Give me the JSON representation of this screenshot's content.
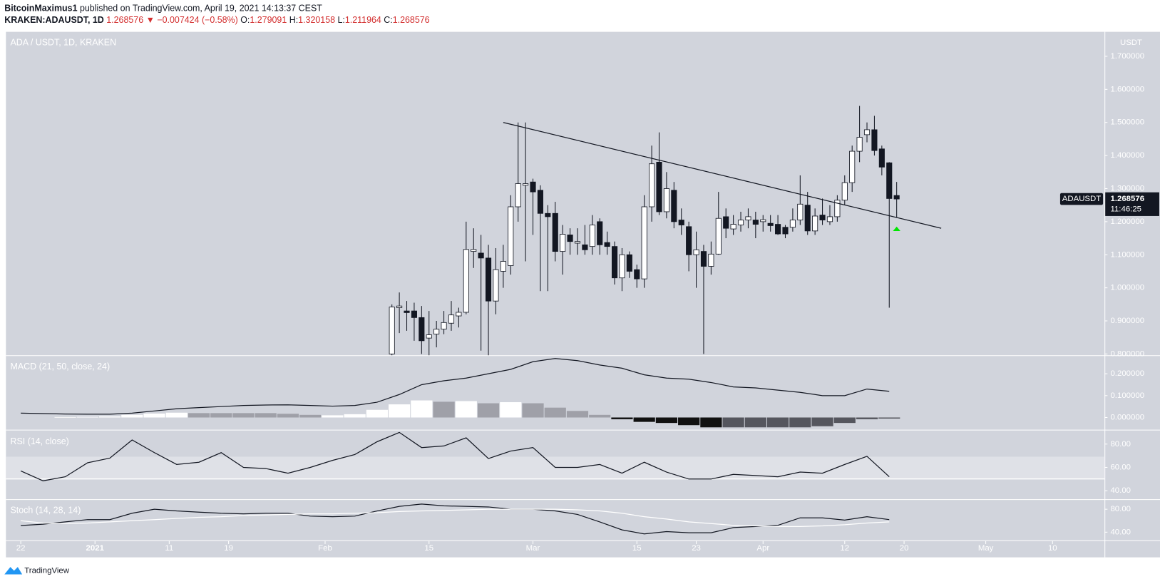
{
  "header": {
    "publisher": "BitcoinMaximus1",
    "published": "published on TradingView.com, April 19, 2021 14:13:37 CEST",
    "symbol": "KRAKEN:ADAUSDT, 1D",
    "price": "1.268576",
    "change": "▼ −0.007424 (−0.58%)",
    "ohlc": [
      {
        "label": "O:",
        "value": "1.279091"
      },
      {
        "label": "H:",
        "value": "1.320158"
      },
      {
        "label": "L:",
        "value": "1.211964"
      },
      {
        "label": "C:",
        "value": "1.268576"
      }
    ],
    "footer": "TradingView"
  },
  "chart_data": [
    {
      "type": "candlestick",
      "title": "ADA / USDT, 1D, KRAKEN",
      "axis_title": "USDT",
      "up_color": "#ffffff",
      "down_color": "#131722",
      "xlim": [
        "2020-12-20",
        "2021-05-17"
      ],
      "ylim": [
        0.796,
        1.774
      ],
      "yticks": [
        {
          "value": 0.8,
          "label": "0.800000"
        },
        {
          "value": 0.9,
          "label": "0.900000"
        },
        {
          "value": 1.0,
          "label": "1.000000"
        },
        {
          "value": 1.1,
          "label": "1.100000"
        },
        {
          "value": 1.2,
          "label": "1.200000"
        },
        {
          "value": 1.3,
          "label": "1.300000"
        },
        {
          "value": 1.4,
          "label": "1.400000"
        },
        {
          "value": 1.5,
          "label": "1.500000"
        },
        {
          "value": 1.6,
          "label": "1.600000"
        },
        {
          "value": 1.7,
          "label": "1.700000"
        }
      ],
      "x": [
        "2021-02-10",
        "2021-02-11",
        "2021-02-12",
        "2021-02-13",
        "2021-02-14",
        "2021-02-15",
        "2021-02-16",
        "2021-02-17",
        "2021-02-18",
        "2021-02-19",
        "2021-02-20",
        "2021-02-21",
        "2021-02-22",
        "2021-02-23",
        "2021-02-24",
        "2021-02-25",
        "2021-02-26",
        "2021-02-27",
        "2021-02-28",
        "2021-03-01",
        "2021-03-02",
        "2021-03-03",
        "2021-03-04",
        "2021-03-05",
        "2021-03-06",
        "2021-03-07",
        "2021-03-08",
        "2021-03-09",
        "2021-03-10",
        "2021-03-11",
        "2021-03-12",
        "2021-03-13",
        "2021-03-14",
        "2021-03-15",
        "2021-03-16",
        "2021-03-17",
        "2021-03-18",
        "2021-03-19",
        "2021-03-20",
        "2021-03-21",
        "2021-03-22",
        "2021-03-23",
        "2021-03-24",
        "2021-03-25",
        "2021-03-26",
        "2021-03-27",
        "2021-03-28",
        "2021-03-29",
        "2021-03-30",
        "2021-03-31",
        "2021-04-01",
        "2021-04-02",
        "2021-04-03",
        "2021-04-04",
        "2021-04-05",
        "2021-04-06",
        "2021-04-07",
        "2021-04-08",
        "2021-04-09",
        "2021-04-10",
        "2021-04-11",
        "2021-04-12",
        "2021-04-13",
        "2021-04-14",
        "2021-04-15",
        "2021-04-16",
        "2021-04-17",
        "2021-04-18",
        "2021-04-19"
      ],
      "open": [
        0.8,
        0.94,
        0.93,
        0.93,
        0.91,
        0.848,
        0.86,
        0.875,
        0.893,
        0.915,
        0.926,
        1.11,
        1.105,
        1.09,
        0.96,
        1.05,
        1.067,
        1.245,
        1.31,
        1.32,
        1.295,
        1.225,
        1.225,
        1.11,
        1.16,
        1.135,
        1.13,
        1.125,
        1.2,
        1.137,
        1.125,
        1.03,
        1.1,
        1.055,
        1.027,
        1.245,
        1.38,
        1.23,
        1.295,
        1.205,
        1.185,
        1.1,
        1.11,
        1.065,
        1.102,
        1.215,
        1.178,
        1.19,
        1.205,
        1.205,
        1.2,
        1.195,
        1.192,
        1.183,
        1.183,
        1.205,
        1.25,
        1.172,
        1.22,
        1.2,
        1.215,
        1.265,
        1.318,
        1.413,
        1.463,
        1.478,
        1.42,
        1.378,
        1.279091
      ],
      "high": [
        0.95,
        0.986,
        0.96,
        0.955,
        0.945,
        0.93,
        0.9,
        0.93,
        0.96,
        0.94,
        1.2,
        1.18,
        1.16,
        1.13,
        1.12,
        1.13,
        1.28,
        1.5,
        1.5,
        1.33,
        1.31,
        1.25,
        1.26,
        1.19,
        1.18,
        1.18,
        1.19,
        1.22,
        1.21,
        1.17,
        1.14,
        1.12,
        1.11,
        1.07,
        1.28,
        1.43,
        1.47,
        1.35,
        1.32,
        1.24,
        1.2,
        1.17,
        1.13,
        1.14,
        1.29,
        1.24,
        1.22,
        1.23,
        1.24,
        1.23,
        1.22,
        1.22,
        1.22,
        1.19,
        1.24,
        1.34,
        1.29,
        1.24,
        1.27,
        1.25,
        1.28,
        1.34,
        1.43,
        1.55,
        1.5,
        1.52,
        1.43,
        1.38,
        1.320158
      ],
      "low": [
        0.78,
        0.863,
        0.87,
        0.84,
        0.8,
        0.79,
        0.82,
        0.86,
        0.87,
        0.88,
        0.92,
        1.06,
        0.81,
        0.79,
        0.92,
        1.0,
        1.04,
        1.2,
        1.08,
        1.16,
        0.99,
        0.99,
        1.08,
        1.04,
        1.1,
        1.1,
        1.1,
        1.1,
        1.1,
        1.1,
        1.01,
        0.99,
        1.03,
        1.0,
        1.0,
        1.2,
        1.22,
        1.21,
        1.18,
        1.16,
        1.05,
        1.0,
        0.8,
        1.04,
        1.1,
        1.15,
        1.16,
        1.17,
        1.18,
        1.15,
        1.17,
        1.17,
        1.16,
        1.15,
        1.17,
        1.19,
        1.16,
        1.16,
        1.19,
        1.19,
        1.2,
        1.25,
        1.29,
        1.38,
        1.44,
        1.4,
        1.34,
        0.94,
        1.211964
      ],
      "close": [
        0.942,
        0.945,
        0.925,
        0.91,
        0.84,
        0.858,
        0.875,
        0.895,
        0.918,
        0.926,
        1.116,
        1.116,
        1.09,
        0.96,
        1.055,
        1.08,
        1.245,
        1.315,
        1.315,
        1.29,
        1.225,
        1.215,
        1.11,
        1.162,
        1.14,
        1.14,
        1.115,
        1.19,
        1.13,
        1.125,
        1.03,
        1.1,
        1.05,
        1.027,
        1.245,
        1.375,
        1.23,
        1.3,
        1.2,
        1.19,
        1.1,
        1.115,
        1.065,
        1.102,
        1.21,
        1.18,
        1.192,
        1.205,
        1.215,
        1.192,
        1.206,
        1.188,
        1.163,
        1.163,
        1.205,
        1.253,
        1.172,
        1.217,
        1.205,
        1.215,
        1.265,
        1.318,
        1.413,
        1.455,
        1.478,
        1.415,
        1.365,
        1.27,
        1.268576
      ],
      "trendline": {
        "x": [
          "2021-02-25",
          "2021-04-25"
        ],
        "y": [
          1.5,
          1.18
        ],
        "color": "#131722"
      },
      "last_price": {
        "symbol": "ADAUSDT",
        "value": 1.268576,
        "label": "1.268576",
        "countdown": "11:46:25"
      }
    },
    {
      "type": "macd",
      "title": "MACD (21, 50, close, 24)",
      "xlim": [
        "2020-12-20",
        "2021-05-17"
      ],
      "ylim": [
        -0.054,
        0.281
      ],
      "yticks": [
        {
          "value": 0.0,
          "label": "0.000000"
        },
        {
          "value": 0.1,
          "label": "0.100000"
        },
        {
          "value": 0.2,
          "label": "0.200000"
        }
      ],
      "x": [
        "2020-12-22",
        "2020-12-25",
        "2020-12-28",
        "2020-12-31",
        "2021-01-03",
        "2021-01-06",
        "2021-01-09",
        "2021-01-12",
        "2021-01-15",
        "2021-01-18",
        "2021-01-21",
        "2021-01-24",
        "2021-01-27",
        "2021-01-30",
        "2021-02-02",
        "2021-02-05",
        "2021-02-08",
        "2021-02-11",
        "2021-02-14",
        "2021-02-17",
        "2021-02-20",
        "2021-02-23",
        "2021-02-26",
        "2021-03-01",
        "2021-03-04",
        "2021-03-07",
        "2021-03-10",
        "2021-03-13",
        "2021-03-16",
        "2021-03-19",
        "2021-03-22",
        "2021-03-25",
        "2021-03-28",
        "2021-03-31",
        "2021-04-03",
        "2021-04-06",
        "2021-04-09",
        "2021-04-12",
        "2021-04-15",
        "2021-04-18"
      ],
      "series": [
        {
          "color": "#131722",
          "values": [
            0.02,
            0.018,
            0.016,
            0.015,
            0.015,
            0.02,
            0.03,
            0.04,
            0.045,
            0.05,
            0.055,
            0.057,
            0.058,
            0.055,
            0.052,
            0.055,
            0.07,
            0.105,
            0.15,
            0.168,
            0.18,
            0.2,
            0.22,
            0.255,
            0.27,
            0.26,
            0.24,
            0.225,
            0.195,
            0.18,
            0.175,
            0.16,
            0.14,
            0.135,
            0.125,
            0.115,
            0.1,
            0.1,
            0.13,
            0.12
          ]
        }
      ],
      "histogram": {
        "values": [
          null,
          null,
          0.002,
          0.003,
          0.005,
          0.012,
          0.018,
          0.022,
          0.02,
          0.02,
          0.02,
          0.02,
          0.017,
          0.012,
          0.01,
          0.015,
          0.035,
          0.06,
          0.078,
          0.072,
          0.075,
          0.065,
          0.07,
          0.065,
          0.045,
          0.03,
          0.012,
          -0.008,
          -0.02,
          -0.025,
          -0.035,
          -0.045,
          -0.045,
          -0.045,
          -0.045,
          -0.045,
          -0.04,
          -0.025,
          -0.008,
          -0.005
        ],
        "colors": [
          "#ffffff",
          "#ffffff",
          "#ffffff",
          "#ffffff",
          "#ffffff",
          "#ffffff",
          "#ffffff",
          "#ffffff",
          "#9fa0a8",
          "#9fa0a8",
          "#9fa0a8",
          "#9fa0a8",
          "#9fa0a8",
          "#9fa0a8",
          "#ffffff",
          "#ffffff",
          "#ffffff",
          "#ffffff",
          "#ffffff",
          "#9fa0a8",
          "#ffffff",
          "#9fa0a8",
          "#ffffff",
          "#9fa0a8",
          "#9fa0a8",
          "#9fa0a8",
          "#9fa0a8",
          "#111111",
          "#111111",
          "#111111",
          "#111111",
          "#111111",
          "#55565e",
          "#55565e",
          "#55565e",
          "#55565e",
          "#55565e",
          "#55565e",
          "#55565e",
          "#55565e"
        ]
      }
    },
    {
      "type": "line",
      "title": "RSI (14, close)",
      "xlim": [
        "2020-12-20",
        "2021-05-17"
      ],
      "ylim": [
        33.0,
        91.4
      ],
      "yticks": [
        {
          "value": 40,
          "label": "40.00"
        },
        {
          "value": 60,
          "label": "60.00"
        },
        {
          "value": 80,
          "label": "80.00"
        }
      ],
      "x": [
        "2020-12-22",
        "2020-12-25",
        "2020-12-28",
        "2020-12-31",
        "2021-01-03",
        "2021-01-06",
        "2021-01-09",
        "2021-01-12",
        "2021-01-15",
        "2021-01-18",
        "2021-01-21",
        "2021-01-24",
        "2021-01-27",
        "2021-01-30",
        "2021-02-02",
        "2021-02-05",
        "2021-02-08",
        "2021-02-11",
        "2021-02-14",
        "2021-02-17",
        "2021-02-20",
        "2021-02-23",
        "2021-02-26",
        "2021-03-01",
        "2021-03-04",
        "2021-03-07",
        "2021-03-10",
        "2021-03-13",
        "2021-03-16",
        "2021-03-19",
        "2021-03-22",
        "2021-03-25",
        "2021-03-28",
        "2021-03-31",
        "2021-04-03",
        "2021-04-06",
        "2021-04-09",
        "2021-04-12",
        "2021-04-15",
        "2021-04-18"
      ],
      "series": [
        {
          "color": "#131722",
          "values": [
            57,
            48.5,
            52,
            64,
            68,
            83.5,
            72.7,
            62.5,
            64.4,
            72.7,
            60,
            59,
            55,
            60,
            66,
            71,
            82,
            90,
            77,
            78.4,
            85.4,
            67.6,
            74,
            77,
            60,
            60,
            62.5,
            55,
            64.4,
            56,
            50,
            50,
            54,
            53,
            52,
            56,
            55,
            62.5,
            69.5,
            52
          ]
        }
      ]
    },
    {
      "type": "line",
      "title": "Stoch (14, 28, 14)",
      "xlim": [
        "2020-12-20",
        "2021-05-17"
      ],
      "ylim": [
        25.8,
        95.5
      ],
      "yticks": [
        {
          "value": 40,
          "label": "40.00"
        },
        {
          "value": 80,
          "label": "80.00"
        }
      ],
      "xticks": [
        {
          "value": "2020-12-22",
          "label": "22"
        },
        {
          "value": "2021-01-01",
          "label": "2021"
        },
        {
          "value": "2021-01-11",
          "label": "11"
        },
        {
          "value": "2021-01-19",
          "label": "19"
        },
        {
          "value": "2021-02-01",
          "label": "Feb"
        },
        {
          "value": "2021-02-15",
          "label": "15"
        },
        {
          "value": "2021-03-01",
          "label": "Mar"
        },
        {
          "value": "2021-03-15",
          "label": "15"
        },
        {
          "value": "2021-03-23",
          "label": "23"
        },
        {
          "value": "2021-04-01",
          "label": "Apr"
        },
        {
          "value": "2021-04-12",
          "label": "12"
        },
        {
          "value": "2021-04-20",
          "label": "20"
        },
        {
          "value": "2021-05-01",
          "label": "May"
        },
        {
          "value": "2021-05-10",
          "label": "10"
        }
      ],
      "x": [
        "2020-12-22",
        "2020-12-25",
        "2020-12-28",
        "2020-12-31",
        "2021-01-03",
        "2021-01-06",
        "2021-01-09",
        "2021-01-12",
        "2021-01-15",
        "2021-01-18",
        "2021-01-21",
        "2021-01-24",
        "2021-01-27",
        "2021-01-30",
        "2021-02-02",
        "2021-02-05",
        "2021-02-08",
        "2021-02-11",
        "2021-02-14",
        "2021-02-17",
        "2021-02-20",
        "2021-02-23",
        "2021-02-26",
        "2021-03-01",
        "2021-03-04",
        "2021-03-07",
        "2021-03-10",
        "2021-03-13",
        "2021-03-16",
        "2021-03-19",
        "2021-03-22",
        "2021-03-25",
        "2021-03-28",
        "2021-03-31",
        "2021-04-03",
        "2021-04-06",
        "2021-04-09",
        "2021-04-12",
        "2021-04-15",
        "2021-04-18"
      ],
      "series": [
        {
          "color": "#131722",
          "values": [
            51.6,
            54,
            58,
            62,
            62,
            73,
            80,
            77,
            75,
            73,
            72,
            73,
            73,
            68,
            67,
            68,
            77,
            85,
            89,
            86,
            85,
            84,
            80,
            80,
            77,
            71,
            58,
            44,
            37,
            41,
            39,
            39,
            48,
            50,
            52,
            65,
            65,
            61,
            67,
            62
          ]
        },
        {
          "color": "#ffffff",
          "values": [
            60,
            56,
            55,
            56,
            58,
            60,
            62,
            64,
            66,
            67,
            69,
            70,
            71,
            72,
            72,
            73,
            74,
            76,
            77,
            78,
            79,
            80,
            80,
            80,
            80,
            79,
            77,
            73,
            67,
            63,
            58,
            55,
            52,
            51,
            50,
            50,
            51,
            53,
            56,
            58
          ]
        }
      ]
    }
  ]
}
